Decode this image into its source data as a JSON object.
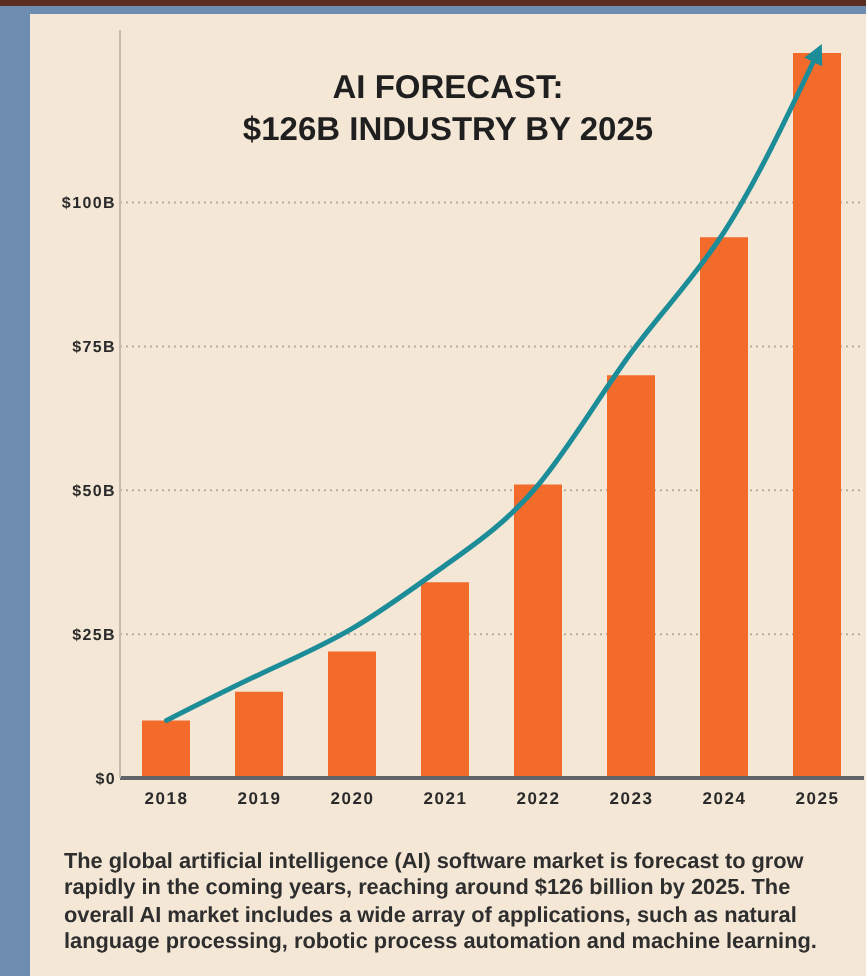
{
  "chart_data": {
    "type": "bar",
    "title": "AI FORECAST:\n$126B INDUSTRY BY 2025",
    "categories": [
      "2018",
      "2019",
      "2020",
      "2021",
      "2022",
      "2023",
      "2024",
      "2025"
    ],
    "series": [
      {
        "color": "#f26b2b",
        "values": [
          10,
          15,
          22,
          34,
          51,
          70,
          94,
          126
        ]
      },
      {
        "type": "line",
        "color": "#1b8c98",
        "values": [
          10,
          18,
          26,
          37,
          51,
          74,
          95,
          126
        ]
      }
    ],
    "ylim": [
      0,
      130
    ],
    "yticks": [
      {
        "value": 0,
        "label": "$0"
      },
      {
        "value": 25,
        "label": "$25B"
      },
      {
        "value": 50,
        "label": "$50B"
      },
      {
        "value": 75,
        "label": "$75B"
      },
      {
        "value": 100,
        "label": "$100B"
      }
    ],
    "grid": "y",
    "annotations": [
      "The global artificial intelligence (AI) software market is forecast to grow rapidly in the coming years, reaching around $126 billion by 2025. The overall AI market includes a wide array of applications, such as natural language processing, robotic process automation and machine learning."
    ]
  }
}
